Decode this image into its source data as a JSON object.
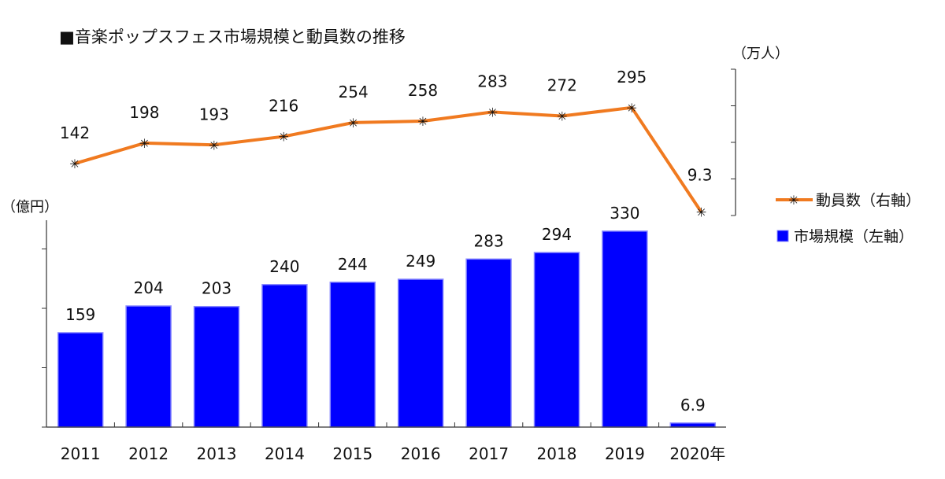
{
  "chart_data": {
    "type": "bar+line",
    "title": "■音楽ポップスフェス市場規模と動員数の推移",
    "categories": [
      "2011",
      "2012",
      "2013",
      "2014",
      "2015",
      "2016",
      "2017",
      "2018",
      "2019",
      "2020年"
    ],
    "series": [
      {
        "name": "市場規模（左軸）",
        "type": "bar",
        "axis": "left",
        "color": "#0000ff",
        "values": [
          159,
          204,
          203,
          240,
          244,
          249,
          283,
          294,
          330,
          6.9
        ],
        "labels": [
          "159",
          "204",
          "203",
          "240",
          "244",
          "249",
          "283",
          "294",
          "330",
          "6.9"
        ]
      },
      {
        "name": "動員数（右軸）",
        "type": "line",
        "axis": "right",
        "color": "#f07a20",
        "values": [
          142,
          198,
          193,
          216,
          254,
          258,
          283,
          272,
          295,
          9.3
        ],
        "labels": [
          "142",
          "198",
          "193",
          "216",
          "254",
          "258",
          "283",
          "272",
          "295",
          "9.3"
        ]
      }
    ],
    "left_axis": {
      "label": "（億円）",
      "ylim": [
        0,
        350
      ],
      "ticks": [
        0,
        100,
        200,
        300
      ]
    },
    "right_axis": {
      "label": "（万人）",
      "ylim": [
        0,
        400
      ],
      "ticks": [
        0,
        100,
        200,
        300,
        400
      ]
    },
    "legend": {
      "placement": "right"
    },
    "grid": false
  }
}
